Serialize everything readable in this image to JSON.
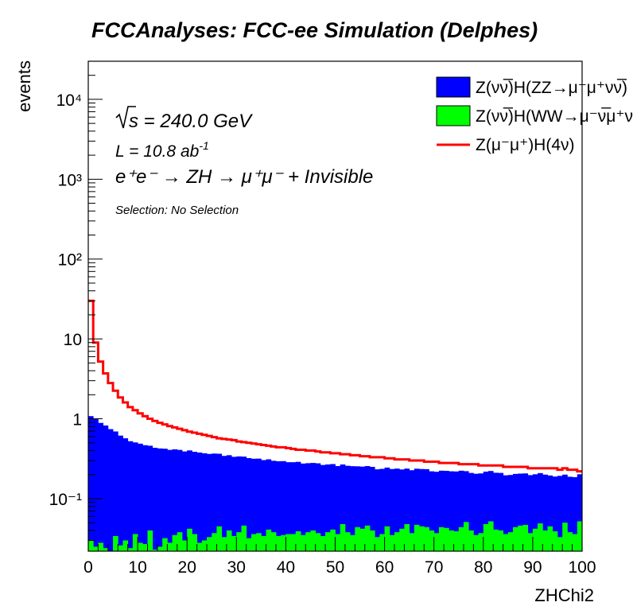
{
  "chart_data": {
    "type": "histogram-stacked-log",
    "title": "FCCAnalyses: FCC-ee Simulation (Delphes)",
    "xlabel": "ZHChi2",
    "ylabel": "events",
    "xlim": [
      0,
      100
    ],
    "ylim": [
      0.022,
      30000
    ],
    "log_y": true,
    "x_ticks": [
      0,
      10,
      20,
      30,
      40,
      50,
      60,
      70,
      80,
      90,
      100
    ],
    "y_tick_labels": [
      "10⁻¹",
      "1",
      "10",
      "10²",
      "10³",
      "10⁴"
    ],
    "y_tick_values": [
      0.1,
      1,
      10,
      100,
      1000,
      10000
    ],
    "annotations": {
      "sqrt_s": "s = 240.0 GeV",
      "lumi": "L = 10.8 ab",
      "lumi_exp": "-1",
      "process": "e⁺e⁻ → ZH → μ⁺μ⁻ + Invisible",
      "selection": "Selection: No Selection"
    },
    "legend_position": "top-right",
    "bins": 100,
    "series": [
      {
        "name": "Z(νν̅)H(ZZ→μ⁻μ⁺νν̅)",
        "style": "filled",
        "color": "#0000ff",
        "values": [
          1.05,
          0.97,
          0.86,
          0.8,
          0.72,
          0.66,
          0.59,
          0.54,
          0.5,
          0.47,
          0.46,
          0.44,
          0.42,
          0.41,
          0.4,
          0.39,
          0.38,
          0.38,
          0.37,
          0.36,
          0.36,
          0.35,
          0.35,
          0.34,
          0.33,
          0.33,
          0.32,
          0.31,
          0.31,
          0.3,
          0.3,
          0.29,
          0.29,
          0.28,
          0.28,
          0.27,
          0.27,
          0.26,
          0.26,
          0.26,
          0.25,
          0.25,
          0.25,
          0.24,
          0.24,
          0.24,
          0.24,
          0.23,
          0.23,
          0.23,
          0.22,
          0.22,
          0.22,
          0.22,
          0.21,
          0.21,
          0.21,
          0.21,
          0.2,
          0.2,
          0.2,
          0.2,
          0.2,
          0.19,
          0.19,
          0.19,
          0.19,
          0.19,
          0.19,
          0.18,
          0.18,
          0.18,
          0.18,
          0.18,
          0.18,
          0.18,
          0.17,
          0.17,
          0.17,
          0.17,
          0.17,
          0.17,
          0.17,
          0.17,
          0.16,
          0.16,
          0.16,
          0.16,
          0.16,
          0.16,
          0.16,
          0.16,
          0.16,
          0.15,
          0.15,
          0.16,
          0.15,
          0.15,
          0.15,
          0.15
        ]
      },
      {
        "name": "Z(νν̅)H(WW→μ⁻ν̅μ⁺ν)",
        "style": "filled",
        "color": "#00ff00",
        "values": [
          0.03,
          0.025,
          0.028,
          0.024,
          0.022,
          0.034,
          0.026,
          0.03,
          0.024,
          0.036,
          0.028,
          0.027,
          0.04,
          0.023,
          0.025,
          0.032,
          0.028,
          0.035,
          0.038,
          0.03,
          0.042,
          0.036,
          0.028,
          0.03,
          0.033,
          0.037,
          0.045,
          0.033,
          0.04,
          0.034,
          0.038,
          0.046,
          0.032,
          0.036,
          0.037,
          0.034,
          0.041,
          0.038,
          0.034,
          0.035,
          0.036,
          0.036,
          0.039,
          0.035,
          0.038,
          0.04,
          0.037,
          0.034,
          0.038,
          0.041,
          0.036,
          0.048,
          0.038,
          0.035,
          0.044,
          0.042,
          0.046,
          0.04,
          0.033,
          0.036,
          0.045,
          0.035,
          0.038,
          0.042,
          0.048,
          0.037,
          0.047,
          0.045,
          0.044,
          0.04,
          0.037,
          0.044,
          0.043,
          0.04,
          0.039,
          0.044,
          0.051,
          0.04,
          0.035,
          0.037,
          0.048,
          0.052,
          0.041,
          0.04,
          0.036,
          0.038,
          0.044,
          0.046,
          0.047,
          0.037,
          0.042,
          0.049,
          0.04,
          0.045,
          0.039,
          0.033,
          0.05,
          0.038,
          0.036,
          0.052
        ]
      },
      {
        "name": "Z(μ⁻μ⁺)H(4ν)",
        "style": "line",
        "color": "#ff0000",
        "values": [
          30,
          9.0,
          5.2,
          3.7,
          2.8,
          2.25,
          1.85,
          1.6,
          1.4,
          1.28,
          1.17,
          1.08,
          1.0,
          0.94,
          0.89,
          0.85,
          0.81,
          0.78,
          0.75,
          0.72,
          0.69,
          0.67,
          0.65,
          0.63,
          0.61,
          0.59,
          0.57,
          0.56,
          0.55,
          0.54,
          0.52,
          0.51,
          0.5,
          0.49,
          0.48,
          0.47,
          0.46,
          0.45,
          0.44,
          0.44,
          0.43,
          0.42,
          0.41,
          0.41,
          0.4,
          0.4,
          0.39,
          0.38,
          0.38,
          0.37,
          0.37,
          0.36,
          0.36,
          0.35,
          0.35,
          0.34,
          0.34,
          0.33,
          0.33,
          0.33,
          0.32,
          0.32,
          0.31,
          0.31,
          0.31,
          0.3,
          0.3,
          0.3,
          0.29,
          0.29,
          0.29,
          0.28,
          0.28,
          0.28,
          0.28,
          0.27,
          0.27,
          0.27,
          0.27,
          0.26,
          0.26,
          0.26,
          0.26,
          0.26,
          0.25,
          0.25,
          0.25,
          0.25,
          0.25,
          0.24,
          0.24,
          0.24,
          0.24,
          0.24,
          0.24,
          0.23,
          0.24,
          0.23,
          0.23,
          0.22
        ]
      }
    ]
  }
}
